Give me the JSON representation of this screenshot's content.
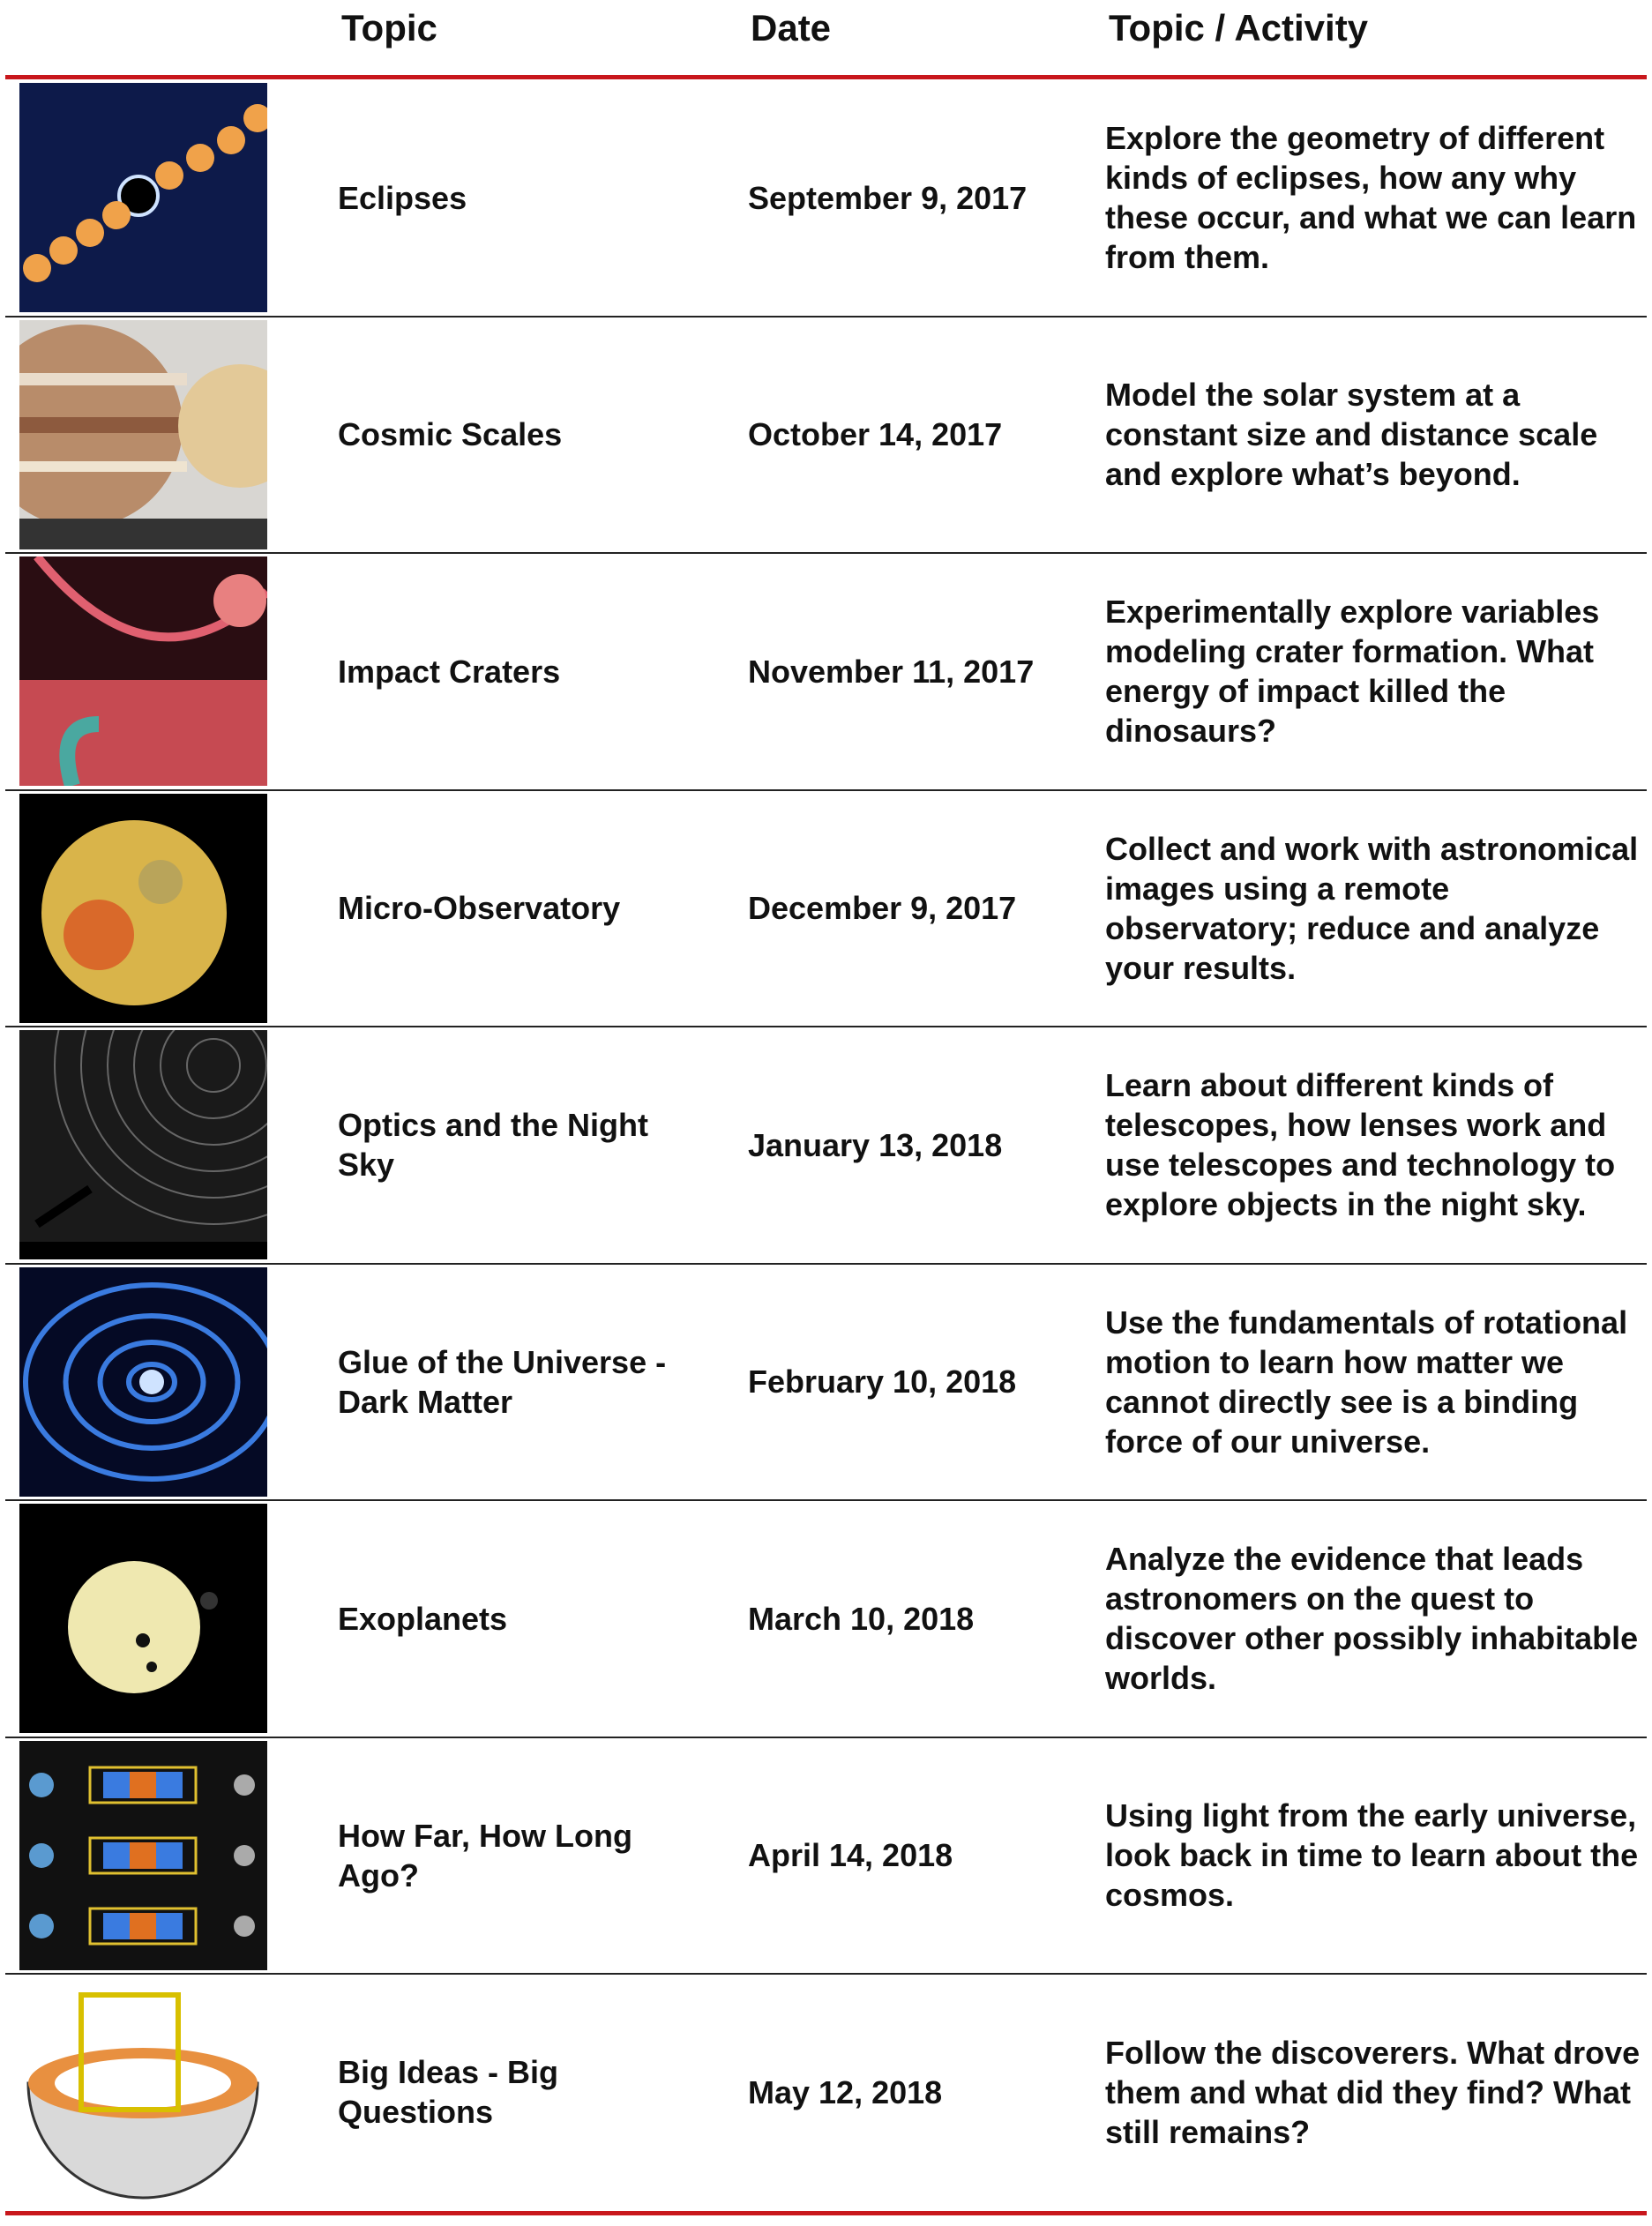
{
  "header": {
    "columns": [
      "Topic",
      "Date",
      "Topic / Activity"
    ]
  },
  "table": {
    "rows": [
      {
        "topic": "Eclipses",
        "date": "September 9, 2017",
        "activity": "Explore the geometry of different kinds of eclipses, how any why these occur, and what we can learn from them."
      },
      {
        "topic": "Cosmic Scales",
        "date": "October 14, 2017",
        "activity": "Model the solar system at a constant size and distance scale and explore what’s beyond."
      },
      {
        "topic": "Impact Craters",
        "date": "November 11, 2017",
        "activity": "Experimentally explore variables modeling crater formation. What energy of impact killed the dinosaurs?"
      },
      {
        "topic": "Micro-Observatory",
        "date": "December 9, 2017",
        "activity": "Collect and work with astronomical images using a remote observatory; reduce and analyze your results."
      },
      {
        "topic": "Optics and the Night Sky",
        "date": "January 13, 2018",
        "activity": "Learn about different kinds of telescopes, how lenses work and use telescopes and technology to explore objects in the night sky."
      },
      {
        "topic": "Glue of the Universe - Dark Matter",
        "date": "February 10, 2018",
        "activity": "Use the fundamentals of rotational motion to learn how matter we cannot directly see is a binding force of our universe."
      },
      {
        "topic": "Exoplanets",
        "date": "March 10, 2018",
        "activity": "Analyze the evidence that leads astronomers on the quest to discover other possibly inhabitable worlds."
      },
      {
        "topic": "How Far, How Long Ago?",
        "date": "April 14, 2018",
        "activity": "Using light from the early universe, look back in time to learn about the cosmos."
      },
      {
        "topic": "Big Ideas - Big Questions",
        "date": "May 12, 2018",
        "activity": "Follow the discoverers. What drove them and what did they find?  What still remains?"
      }
    ]
  }
}
